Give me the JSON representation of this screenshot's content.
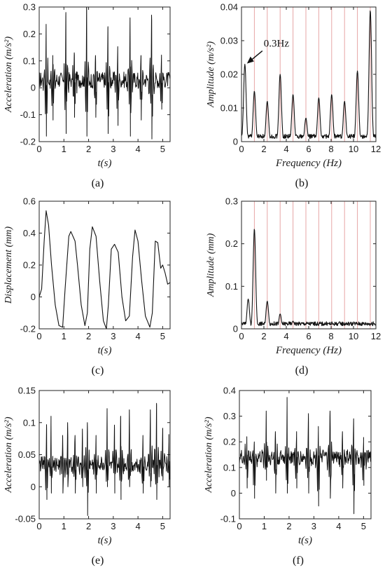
{
  "chart_data": [
    {
      "id": "a",
      "type": "line",
      "panel_label": "(a)",
      "xlabel": "t(s)",
      "ylabel": "Acceleration (m/s²)",
      "xlim": [
        0,
        5.3
      ],
      "ylim": [
        -0.2,
        0.3
      ],
      "xticks": [
        "0",
        "1",
        "2",
        "3",
        "4",
        "5"
      ],
      "yticks": [
        "-0.2",
        "-0.1",
        "0",
        "0.1",
        "0.2",
        "0.3"
      ],
      "spikes": [
        [
          0.28,
          0.23,
          -0.18
        ],
        [
          0.55,
          0.12,
          -0.12
        ],
        [
          1.08,
          0.28,
          -0.17
        ],
        [
          1.42,
          0.13,
          -0.11
        ],
        [
          1.92,
          0.3,
          -0.18
        ],
        [
          2.28,
          0.12,
          -0.11
        ],
        [
          2.78,
          0.22,
          -0.17
        ],
        [
          3.18,
          0.15,
          -0.14
        ],
        [
          3.68,
          0.26,
          -0.18
        ],
        [
          4.12,
          0.12,
          -0.12
        ],
        [
          4.55,
          0.27,
          -0.19
        ],
        [
          4.95,
          0.12,
          -0.08
        ]
      ],
      "baseline": 0.03
    },
    {
      "id": "b",
      "type": "line",
      "panel_label": "(b)",
      "xlabel": "Frequency (Hz)",
      "ylabel": "Amplitude (m/s²)",
      "xlim": [
        0,
        12
      ],
      "ylim": [
        0,
        0.04
      ],
      "xticks": [
        "0",
        "2",
        "4",
        "6",
        "8",
        "10",
        "12"
      ],
      "yticks": [
        "0",
        "0.01",
        "0.02",
        "0.03",
        "0.04"
      ],
      "harmonic_lines": [
        1.15,
        2.3,
        3.45,
        4.6,
        5.75,
        6.9,
        8.05,
        9.2,
        10.35,
        11.5
      ],
      "peaks": [
        [
          0.3,
          0.023
        ],
        [
          1.15,
          0.015
        ],
        [
          2.3,
          0.012
        ],
        [
          3.45,
          0.02
        ],
        [
          4.6,
          0.014
        ],
        [
          5.75,
          0.007
        ],
        [
          6.9,
          0.013
        ],
        [
          8.05,
          0.014
        ],
        [
          9.2,
          0.012
        ],
        [
          10.35,
          0.021
        ],
        [
          11.5,
          0.039
        ]
      ],
      "annotation": {
        "text": "0.3Hz",
        "x": 0.3,
        "y": 0.023
      }
    },
    {
      "id": "c",
      "type": "line",
      "panel_label": "(c)",
      "xlabel": "t(s)",
      "ylabel": "Displacement (mm)",
      "xlim": [
        0,
        5.3
      ],
      "ylim": [
        -0.2,
        0.6
      ],
      "xticks": [
        "0",
        "1",
        "2",
        "3",
        "4",
        "5"
      ],
      "yticks": [
        "-0.2",
        "0",
        "0.2",
        "0.4",
        "0.6"
      ],
      "points": [
        [
          0,
          0.0
        ],
        [
          0.1,
          0.05
        ],
        [
          0.2,
          0.35
        ],
        [
          0.28,
          0.54
        ],
        [
          0.38,
          0.45
        ],
        [
          0.5,
          0.2
        ],
        [
          0.65,
          -0.05
        ],
        [
          0.8,
          -0.18
        ],
        [
          0.95,
          -0.19
        ],
        [
          1.05,
          0.05
        ],
        [
          1.2,
          0.38
        ],
        [
          1.28,
          0.41
        ],
        [
          1.45,
          0.35
        ],
        [
          1.55,
          0.2
        ],
        [
          1.7,
          -0.05
        ],
        [
          1.85,
          -0.18
        ],
        [
          1.95,
          -0.1
        ],
        [
          2.05,
          0.3
        ],
        [
          2.15,
          0.44
        ],
        [
          2.3,
          0.38
        ],
        [
          2.45,
          0.1
        ],
        [
          2.6,
          -0.15
        ],
        [
          2.72,
          -0.2
        ],
        [
          2.8,
          -0.05
        ],
        [
          2.92,
          0.3
        ],
        [
          3.05,
          0.33
        ],
        [
          3.2,
          0.28
        ],
        [
          3.35,
          0.0
        ],
        [
          3.5,
          -0.15
        ],
        [
          3.65,
          -0.12
        ],
        [
          3.78,
          0.25
        ],
        [
          3.88,
          0.42
        ],
        [
          4.0,
          0.35
        ],
        [
          4.15,
          0.1
        ],
        [
          4.3,
          -0.12
        ],
        [
          4.48,
          -0.19
        ],
        [
          4.58,
          -0.1
        ],
        [
          4.7,
          0.35
        ],
        [
          4.8,
          0.34
        ],
        [
          4.92,
          0.18
        ],
        [
          5.0,
          0.2
        ],
        [
          5.1,
          0.15
        ],
        [
          5.2,
          0.08
        ],
        [
          5.3,
          0.09
        ]
      ]
    },
    {
      "id": "d",
      "type": "line",
      "panel_label": "(d)",
      "xlabel": "Frequency (Hz)",
      "ylabel": "Amplitude (mm)",
      "xlim": [
        0,
        12
      ],
      "ylim": [
        0,
        0.3
      ],
      "xticks": [
        "0",
        "2",
        "4",
        "6",
        "8",
        "10",
        "12"
      ],
      "yticks": [
        "0",
        "0.1",
        "0.2",
        "0.3"
      ],
      "harmonic_lines": [
        1.15,
        2.3,
        3.45,
        4.6,
        5.75,
        6.9,
        8.05,
        9.2,
        10.35,
        11.5
      ],
      "peaks": [
        [
          0.6,
          0.07
        ],
        [
          1.15,
          0.235
        ],
        [
          2.3,
          0.065
        ],
        [
          3.45,
          0.035
        ],
        [
          4.6,
          0.018
        ],
        [
          5.75,
          0.006
        ],
        [
          6.9,
          0.006
        ],
        [
          8.05,
          0.005
        ],
        [
          9.2,
          0.004
        ],
        [
          10.35,
          0.004
        ],
        [
          11.5,
          0.005
        ]
      ]
    },
    {
      "id": "e",
      "type": "line",
      "panel_label": "(e)",
      "xlabel": "t(s)",
      "ylabel": "Acceleration (m/s²)",
      "xlim": [
        0,
        5.3
      ],
      "ylim": [
        -0.05,
        0.15
      ],
      "xticks": [
        "0",
        "1",
        "2",
        "3",
        "4",
        "5"
      ],
      "yticks": [
        "-0.05",
        "0",
        "0.05",
        "0.1",
        "0.15"
      ],
      "spikes": [
        [
          0.3,
          0.09,
          -0.02
        ],
        [
          0.48,
          0.11,
          -0.01
        ],
        [
          0.95,
          0.08,
          -0.01
        ],
        [
          1.15,
          0.1,
          0.0
        ],
        [
          1.45,
          0.08,
          -0.01
        ],
        [
          1.75,
          0.09,
          0.0
        ],
        [
          1.95,
          0.1,
          -0.045
        ],
        [
          2.3,
          0.08,
          -0.01
        ],
        [
          2.75,
          0.12,
          0.0
        ],
        [
          3.05,
          0.09,
          -0.01
        ],
        [
          3.3,
          0.11,
          -0.02
        ],
        [
          3.65,
          0.12,
          0.0
        ],
        [
          4.2,
          0.08,
          -0.01
        ],
        [
          4.5,
          0.12,
          0.0
        ],
        [
          4.75,
          0.13,
          -0.02
        ],
        [
          5.0,
          0.09,
          0.01
        ],
        [
          5.25,
          0.07,
          0.0
        ]
      ],
      "baseline": 0.035
    },
    {
      "id": "f",
      "type": "line",
      "panel_label": "(f)",
      "xlabel": "t(s)",
      "ylabel": "Acceleration (m/s²)",
      "xlim": [
        0,
        5.3
      ],
      "ylim": [
        -0.1,
        0.4
      ],
      "xticks": [
        "0",
        "1",
        "2",
        "3",
        "4",
        "5"
      ],
      "yticks": [
        "-0.1",
        "0",
        "0.1",
        "0.2",
        "0.3",
        "0.4"
      ],
      "spikes": [
        [
          0.3,
          0.22,
          0.02
        ],
        [
          0.6,
          0.2,
          -0.02
        ],
        [
          1.08,
          0.32,
          0.05
        ],
        [
          1.45,
          0.24,
          0.0
        ],
        [
          1.92,
          0.35,
          0.0
        ],
        [
          2.3,
          0.22,
          0.02
        ],
        [
          2.78,
          0.31,
          0.0
        ],
        [
          3.18,
          0.26,
          -0.05
        ],
        [
          3.65,
          0.32,
          -0.02
        ],
        [
          4.15,
          0.24,
          0.02
        ],
        [
          4.6,
          0.29,
          -0.08
        ],
        [
          5.0,
          0.2,
          0.03
        ]
      ],
      "baseline": 0.14
    }
  ]
}
